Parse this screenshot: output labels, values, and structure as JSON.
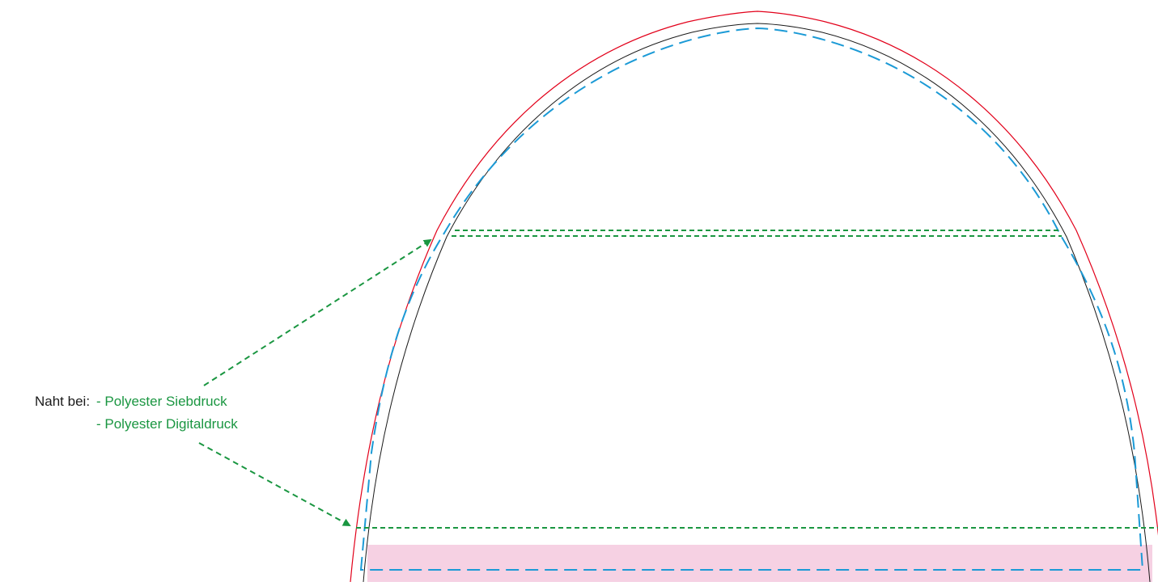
{
  "annotation": {
    "prefix": "Naht bei:",
    "items": [
      "- Polyester Siebdruck",
      "- Polyester Digitaldruck"
    ]
  },
  "colors": {
    "outer_cut_line": "#e2001a",
    "trim_line": "#1a1a1a",
    "safety_line": "#1b9ad6",
    "seam_line": "#1a9641",
    "bottom_band": "#f6d1e3",
    "label_text": "#1a1a1a",
    "label_green": "#1a9641",
    "background": "#ffffff"
  },
  "icons": {
    "seam_arrow_top": "arrow-up-right-icon",
    "seam_arrow_bottom": "arrow-down-right-icon"
  }
}
